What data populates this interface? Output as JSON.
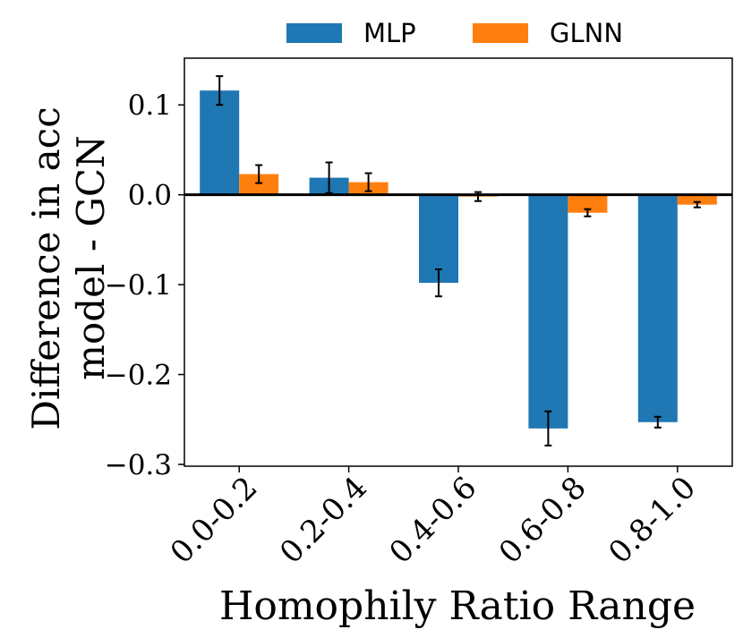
{
  "chart_data": {
    "type": "bar",
    "title": "",
    "xlabel": "Homophily Ratio Range",
    "ylabel_lines": [
      "Difference in acc",
      "model - GCN"
    ],
    "categories": [
      "0.0-0.2",
      "0.2-0.4",
      "0.4-0.6",
      "0.6-0.8",
      "0.8-1.0"
    ],
    "series": [
      {
        "name": "MLP",
        "color": "#1f77b4",
        "values": [
          0.116,
          0.019,
          -0.098,
          -0.26,
          -0.253
        ],
        "errors": [
          0.016,
          0.017,
          0.015,
          0.019,
          0.006
        ]
      },
      {
        "name": "GLNN",
        "color": "#ff7f0e",
        "values": [
          0.023,
          0.014,
          -0.002,
          -0.02,
          -0.011
        ],
        "errors": [
          0.01,
          0.01,
          0.005,
          0.004,
          0.003
        ]
      }
    ],
    "yticks": [
      0.1,
      0.0,
      -0.1,
      -0.2,
      -0.3
    ],
    "ytick_labels": [
      "0.1",
      "0.0",
      "−0.1",
      "−0.2",
      "−0.3"
    ],
    "ylim": [
      -0.302,
      0.152
    ],
    "zero_line": true,
    "legend_position": "top-center",
    "grid": false
  }
}
